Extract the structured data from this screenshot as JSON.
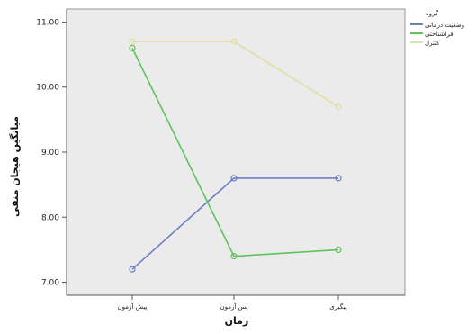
{
  "chart_data": {
    "type": "line",
    "xlabel": "زمان",
    "ylabel": "میانگین هیجان منفی",
    "categories": [
      "پیش آزمون",
      "پس آزمون",
      "پیگیری"
    ],
    "ylim": [
      6.8,
      11.2
    ],
    "yticks": [
      "7.00",
      "8.00",
      "9.00",
      "10.00",
      "11.00"
    ],
    "ytick_values": [
      7,
      8,
      9,
      10,
      11
    ],
    "grid": false,
    "legend_position": "top-right",
    "legend_title": "گروه",
    "plot_background": "#ebebeb",
    "series": [
      {
        "name": "وضعیت درمانی",
        "color": "#6f7ec4",
        "values": [
          7.2,
          8.6,
          8.6
        ]
      },
      {
        "name": "فراشناختی",
        "color": "#5ec45a",
        "values": [
          10.6,
          7.4,
          7.5
        ]
      },
      {
        "name": "کنترل",
        "color": "#dfe0a2",
        "values": [
          10.7,
          10.7,
          9.7
        ]
      }
    ]
  }
}
